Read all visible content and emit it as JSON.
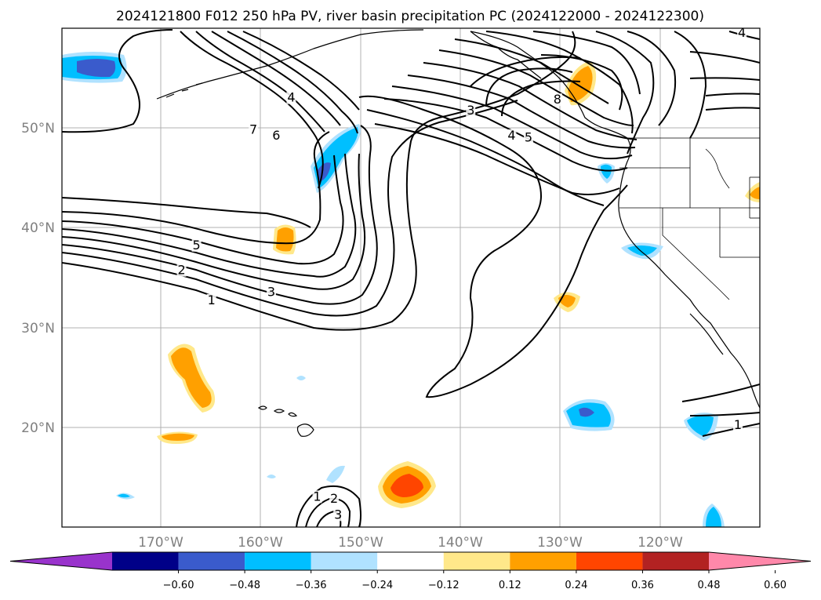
{
  "title": "2024121800 F012 250 hPa PV, river basin precipitation PC (2024122000 - 2024122300)",
  "map": {
    "lon_range": [
      -180,
      -110
    ],
    "lat_range": [
      10,
      60
    ],
    "lat_labels": [
      "50°N",
      "40°N",
      "30°N",
      "20°N"
    ],
    "lon_labels": [
      "170°W",
      "160°W",
      "150°W",
      "140°W",
      "130°W",
      "120°W"
    ],
    "gridlines": true
  },
  "contour_labels": [
    {
      "text": "1",
      "lon": -165,
      "lat": 32.5
    },
    {
      "text": "2",
      "lon": -168,
      "lat": 35.5
    },
    {
      "text": "3",
      "lon": -159,
      "lat": 33.3
    },
    {
      "text": "5",
      "lon": -166.5,
      "lat": 38
    },
    {
      "text": "7",
      "lon": -160.8,
      "lat": 49.6
    },
    {
      "text": "6",
      "lon": -158.5,
      "lat": 49
    },
    {
      "text": "4",
      "lon": -157,
      "lat": 52.8
    },
    {
      "text": "3",
      "lon": -139,
      "lat": 51.5
    },
    {
      "text": "4",
      "lon": -134.9,
      "lat": 49
    },
    {
      "text": "5",
      "lon": -133.2,
      "lat": 48.8
    },
    {
      "text": "8",
      "lon": -130.3,
      "lat": 52.6
    },
    {
      "text": "4",
      "lon": -111.8,
      "lat": 59.3
    },
    {
      "text": "1",
      "lon": -112.2,
      "lat": 20
    },
    {
      "text": "1",
      "lon": -154.4,
      "lat": 12.8
    },
    {
      "text": "2",
      "lon": -152.7,
      "lat": 12.6
    },
    {
      "text": "3",
      "lon": -152.3,
      "lat": 11.0
    }
  ],
  "colorbar": {
    "tick_labels": [
      "−0.60",
      "−0.48",
      "−0.36",
      "−0.24",
      "−0.12",
      "0.12",
      "0.24",
      "0.36",
      "0.48",
      "0.60"
    ],
    "colors": [
      "#9933cc",
      "#000088",
      "#3a5bcc",
      "#00bfff",
      "#b0e2ff",
      "#ffffff",
      "#ffe88a",
      "#ffa000",
      "#ff4500",
      "#b22222",
      "#ff88aa"
    ],
    "extend": "both"
  }
}
